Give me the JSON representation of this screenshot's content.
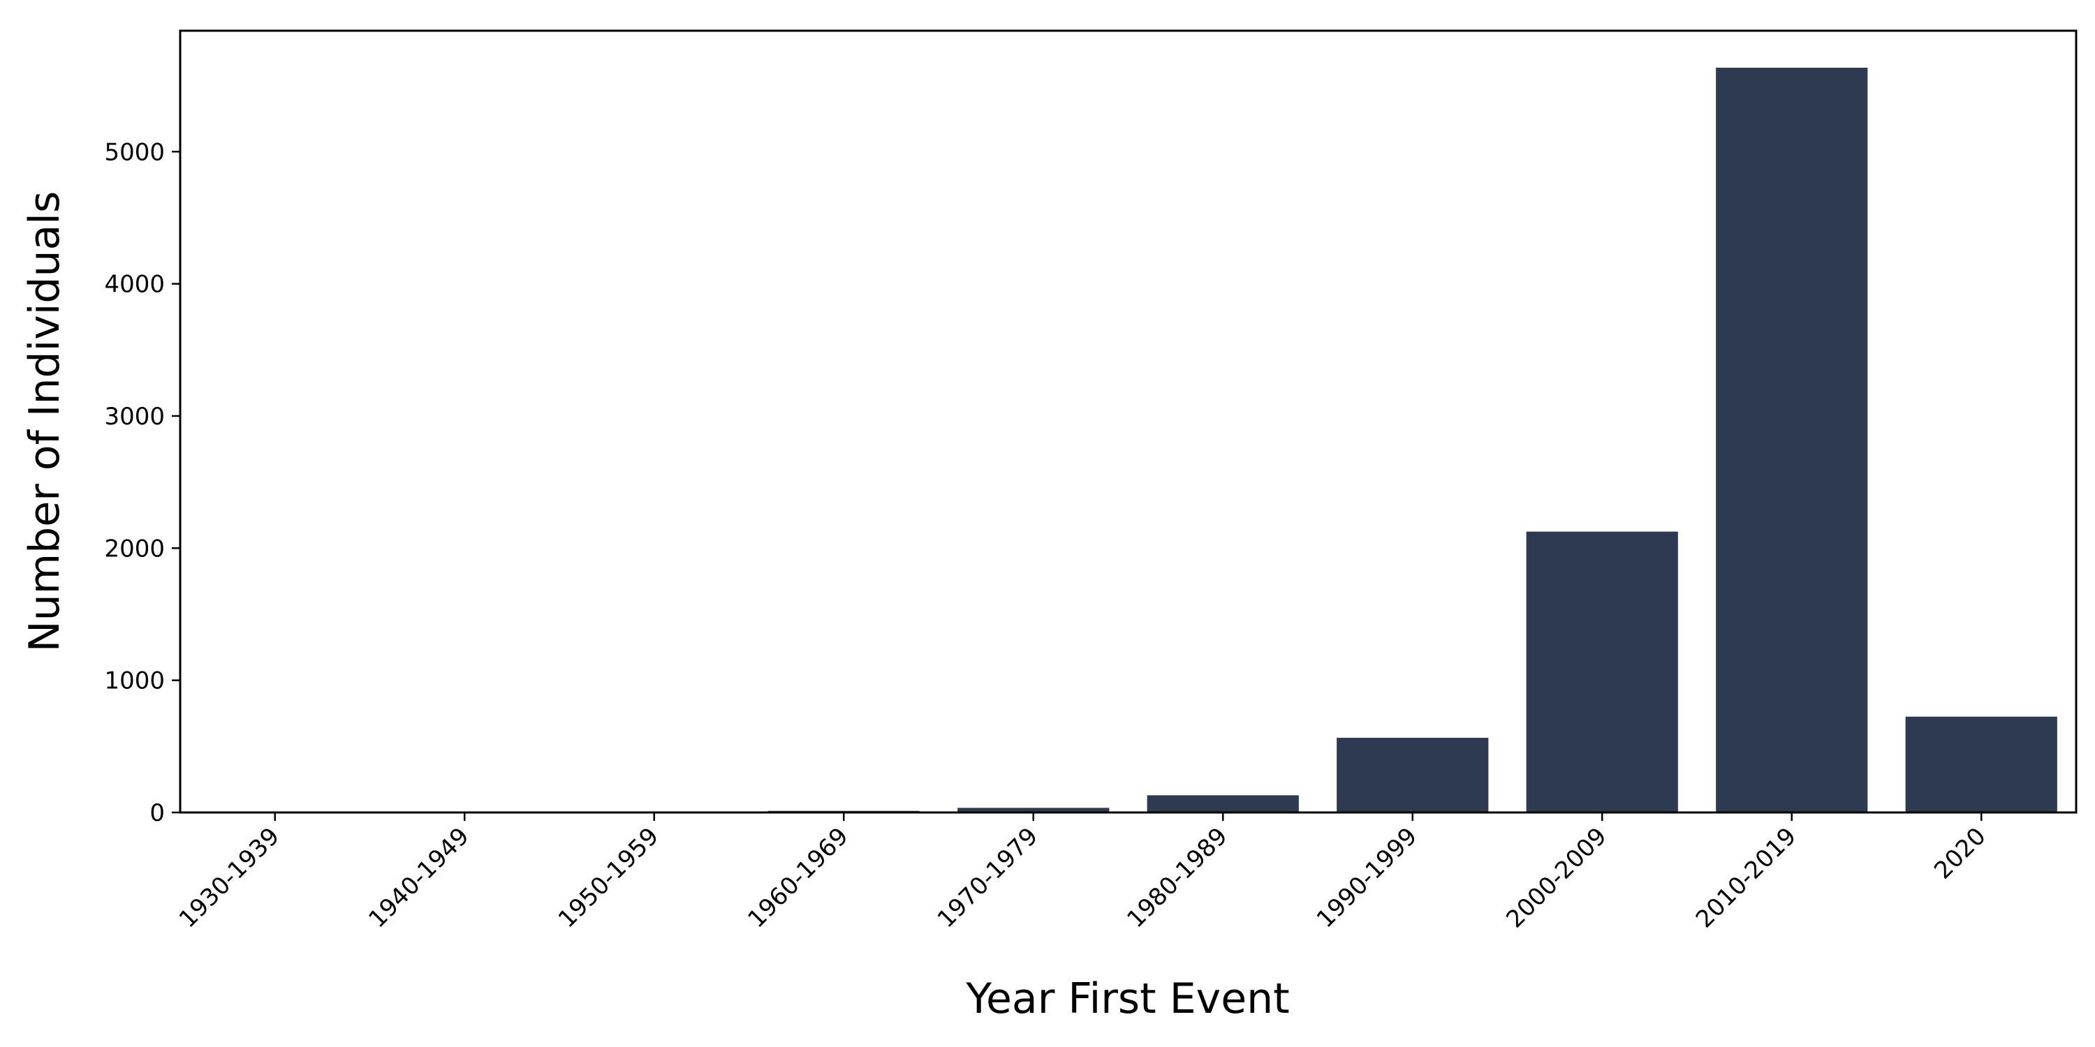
{
  "chart_data": {
    "type": "bar",
    "categories": [
      "1930-1939",
      "1940-1949",
      "1950-1959",
      "1960-1969",
      "1970-1979",
      "1980-1989",
      "1990-1999",
      "2000-2009",
      "2010-2019",
      "2020"
    ],
    "values": [
      1,
      2,
      3,
      12,
      35,
      130,
      565,
      2125,
      5635,
      725
    ],
    "xlabel": "Year First Event",
    "ylabel": "Number of Individuals",
    "ylim": [
      0,
      5915
    ],
    "yticks": [
      0,
      1000,
      2000,
      3000,
      4000,
      5000
    ],
    "bar_color": "#2d3a52",
    "grid": false,
    "legend": "none"
  }
}
